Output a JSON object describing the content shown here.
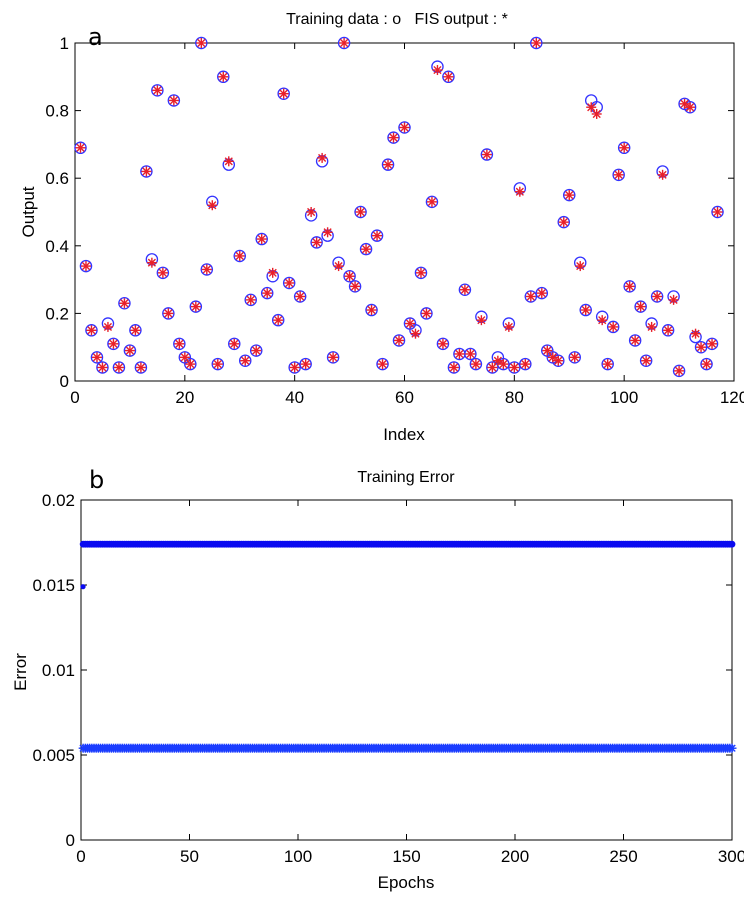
{
  "chart_data": [
    {
      "type": "scatter",
      "panel_label": "a",
      "title": "Training data : o   FIS output : *",
      "xlabel": "Index",
      "ylabel": "Output",
      "xlim": [
        0,
        120
      ],
      "ylim": [
        0,
        1
      ],
      "xticks": [
        "0",
        "20",
        "40",
        "60",
        "80",
        "100",
        "120"
      ],
      "yticks": [
        "0",
        "0.2",
        "0.4",
        "0.6",
        "0.8",
        "1"
      ],
      "grid": false,
      "colors": {
        "training": "#3333ff",
        "fis": "#e8202a"
      },
      "series": [
        {
          "marker": "o",
          "x": [
            1,
            2,
            3,
            4,
            5,
            6,
            7,
            8,
            9,
            10,
            11,
            12,
            13,
            14,
            15,
            16,
            17,
            18,
            19,
            20,
            21,
            22,
            23,
            24,
            25,
            26,
            27,
            28,
            29,
            30,
            31,
            32,
            33,
            34,
            35,
            36,
            37,
            38,
            39,
            40,
            41,
            42,
            43,
            44,
            45,
            46,
            47,
            48,
            49,
            50,
            51,
            52,
            53,
            54,
            55,
            56,
            57,
            58,
            59,
            60,
            61,
            62,
            63,
            64,
            65,
            66,
            67,
            68,
            69,
            70,
            71,
            72,
            73,
            74,
            75,
            76,
            77,
            78,
            79,
            80,
            81,
            82,
            83,
            84,
            85,
            86,
            87,
            88,
            89,
            90,
            91,
            92,
            93,
            94,
            95,
            96,
            97,
            98,
            99,
            100,
            101,
            102,
            103,
            104,
            105,
            106,
            107,
            108,
            109,
            110,
            111,
            112,
            113,
            114,
            115,
            116,
            117
          ],
          "y": [
            0.69,
            0.34,
            0.15,
            0.07,
            0.04,
            0.17,
            0.11,
            0.04,
            0.23,
            0.09,
            0.15,
            0.04,
            0.62,
            0.36,
            0.86,
            0.32,
            0.2,
            0.83,
            0.11,
            0.07,
            0.05,
            0.22,
            1.0,
            0.33,
            0.53,
            0.05,
            0.9,
            0.64,
            0.11,
            0.37,
            0.06,
            0.24,
            0.09,
            0.42,
            0.26,
            0.31,
            0.18,
            0.85,
            0.29,
            0.04,
            0.25,
            0.05,
            0.49,
            0.41,
            0.65,
            0.43,
            0.07,
            0.35,
            1.0,
            0.31,
            0.28,
            0.5,
            0.39,
            0.21,
            0.43,
            0.05,
            0.64,
            0.72,
            0.12,
            0.75,
            0.17,
            0.15,
            0.32,
            0.2,
            0.53,
            0.93,
            0.11,
            0.9,
            0.04,
            0.08,
            0.27,
            0.08,
            0.05,
            0.19,
            0.67,
            0.04,
            0.07,
            0.05,
            0.17,
            0.04,
            0.57,
            0.05,
            0.25,
            1.0,
            0.26,
            0.09,
            0.07,
            0.06,
            0.47,
            0.55,
            0.07,
            0.35,
            0.21,
            0.83,
            0.81,
            0.19,
            0.05,
            0.16,
            0.61,
            0.69,
            0.28,
            0.12,
            0.22,
            0.06,
            0.17,
            0.25,
            0.62,
            0.15,
            0.25,
            0.03,
            0.82,
            0.81,
            0.13,
            0.1,
            0.05,
            0.11,
            0.5
          ]
        },
        {
          "marker": "*",
          "x": [
            1,
            2,
            3,
            4,
            5,
            6,
            7,
            8,
            9,
            10,
            11,
            12,
            13,
            14,
            15,
            16,
            17,
            18,
            19,
            20,
            21,
            22,
            23,
            24,
            25,
            26,
            27,
            28,
            29,
            30,
            31,
            32,
            33,
            34,
            35,
            36,
            37,
            38,
            39,
            40,
            41,
            42,
            43,
            44,
            45,
            46,
            47,
            48,
            49,
            50,
            51,
            52,
            53,
            54,
            55,
            56,
            57,
            58,
            59,
            60,
            61,
            62,
            63,
            64,
            65,
            66,
            67,
            68,
            69,
            70,
            71,
            72,
            73,
            74,
            75,
            76,
            77,
            78,
            79,
            80,
            81,
            82,
            83,
            84,
            85,
            86,
            87,
            88,
            89,
            90,
            91,
            92,
            93,
            94,
            95,
            96,
            97,
            98,
            99,
            100,
            101,
            102,
            103,
            104,
            105,
            106,
            107,
            108,
            109,
            110,
            111,
            112,
            113,
            114,
            115,
            116,
            117
          ],
          "y": [
            0.69,
            0.34,
            0.15,
            0.07,
            0.04,
            0.16,
            0.11,
            0.04,
            0.23,
            0.09,
            0.15,
            0.04,
            0.62,
            0.35,
            0.86,
            0.32,
            0.2,
            0.83,
            0.11,
            0.07,
            0.05,
            0.22,
            1.0,
            0.33,
            0.52,
            0.05,
            0.9,
            0.65,
            0.11,
            0.37,
            0.06,
            0.24,
            0.09,
            0.42,
            0.26,
            0.32,
            0.18,
            0.85,
            0.29,
            0.04,
            0.25,
            0.05,
            0.5,
            0.41,
            0.66,
            0.44,
            0.07,
            0.34,
            1.0,
            0.31,
            0.28,
            0.5,
            0.39,
            0.21,
            0.43,
            0.05,
            0.64,
            0.72,
            0.12,
            0.75,
            0.17,
            0.14,
            0.32,
            0.2,
            0.53,
            0.92,
            0.11,
            0.9,
            0.04,
            0.08,
            0.27,
            0.08,
            0.05,
            0.18,
            0.67,
            0.04,
            0.06,
            0.05,
            0.16,
            0.04,
            0.56,
            0.05,
            0.25,
            1.0,
            0.26,
            0.09,
            0.07,
            0.06,
            0.47,
            0.55,
            0.07,
            0.34,
            0.21,
            0.81,
            0.79,
            0.18,
            0.05,
            0.16,
            0.61,
            0.69,
            0.28,
            0.12,
            0.22,
            0.06,
            0.16,
            0.25,
            0.61,
            0.15,
            0.24,
            0.03,
            0.82,
            0.81,
            0.14,
            0.1,
            0.05,
            0.11,
            0.5
          ]
        }
      ]
    },
    {
      "type": "scatter",
      "panel_label": "b",
      "title": "Training Error",
      "xlabel": "Epochs",
      "ylabel": "Error",
      "xlim": [
        0,
        300
      ],
      "ylim": [
        0,
        0.02
      ],
      "xticks": [
        "0",
        "50",
        "100",
        "150",
        "200",
        "250",
        "300"
      ],
      "yticks": [
        "0",
        "0.005",
        "0.01",
        "0.015",
        "0.02"
      ],
      "grid": false,
      "colors": {
        "dots": "#0a0af0",
        "stars": "#1a3cff"
      },
      "series": [
        {
          "marker": ".",
          "x_start": 1,
          "x_end": 300,
          "y": 0.0174
        },
        {
          "marker": "*",
          "x_start": 1,
          "x_end": 300,
          "y": 0.0054
        },
        {
          "marker": ".",
          "x": [
            0
          ],
          "y": [
            0.0149
          ]
        }
      ]
    }
  ]
}
